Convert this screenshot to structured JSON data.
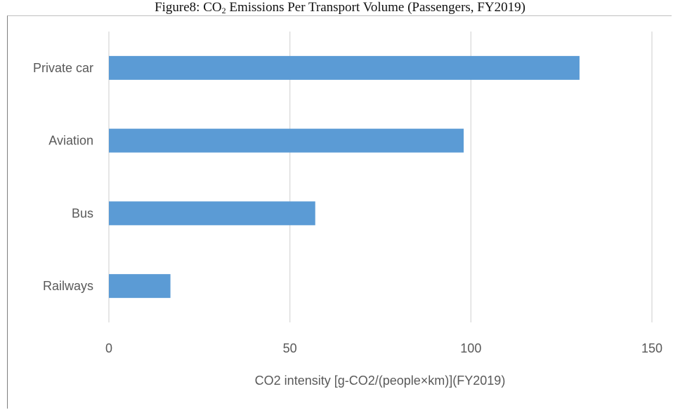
{
  "title": {
    "prefix": "Figure8: CO",
    "subscript": "2",
    "suffix": " Emissions Per Transport Volume (Passengers, FY2019)"
  },
  "chart_data": {
    "type": "bar",
    "orientation": "horizontal",
    "categories": [
      "Private car",
      "Aviation",
      "Bus",
      "Railways"
    ],
    "values": [
      130,
      98,
      57,
      17
    ],
    "xlabel": "CO2 intensity [g-CO2/(people×km)](FY2019)",
    "ylabel": "",
    "xlim": [
      0,
      150
    ],
    "xticks": [
      0,
      50,
      100,
      150
    ],
    "xtick_labels": [
      "0",
      "50",
      "100",
      "150"
    ],
    "grid": "vertical",
    "legend": "none",
    "bar_color": "#5b9bd5"
  },
  "colors": {
    "bar": "#5b9bd5",
    "gridline": "#d9d9d9",
    "text": "#595959"
  }
}
